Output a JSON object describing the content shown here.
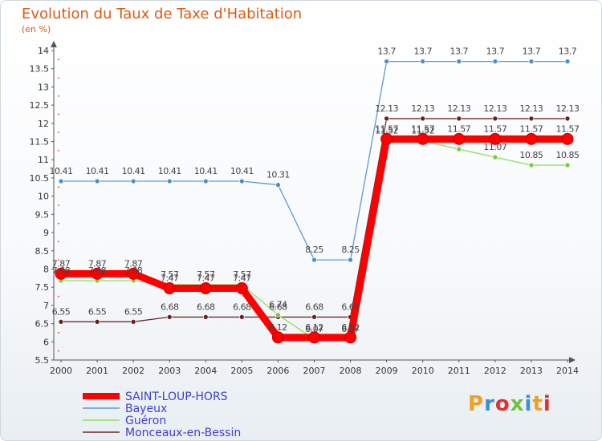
{
  "title": "Evolution du Taux de Taxe d'Habitation",
  "subtitle": "(en %)",
  "brand": "Proxiti",
  "chart_data": {
    "type": "line",
    "title": "Evolution du Taux de Taxe d'Habitation",
    "ylabel": "(en %)",
    "xlabel": "",
    "ylim": [
      5.5,
      14
    ],
    "yticks": [
      "5.5",
      "6",
      "6.5",
      "7",
      "7.5",
      "8",
      "8.5",
      "9",
      "9.5",
      "10",
      "10.5",
      "11",
      "11.5",
      "12",
      "12.5",
      "13",
      "13.5",
      "14"
    ],
    "x": [
      "2000",
      "2001",
      "2002",
      "2003",
      "2004",
      "2005",
      "2006",
      "2007",
      "2008",
      "2009",
      "2010",
      "2011",
      "2012",
      "2013",
      "2014"
    ],
    "series": [
      {
        "name": "SAINT-LOUP-HORS",
        "color": "#ff0000",
        "marker": "#ff0000",
        "values": [
          7.87,
          7.87,
          7.87,
          7.47,
          7.47,
          7.47,
          6.12,
          6.12,
          6.12,
          11.57,
          11.57,
          11.57,
          11.57,
          11.57,
          11.57
        ],
        "labels": [
          "",
          "",
          "",
          "",
          "",
          "",
          "6.12",
          "6.12",
          "6.12",
          "",
          "",
          "11.57",
          "",
          "",
          ""
        ]
      },
      {
        "name": "Bayeux",
        "color": "#5b9bd5",
        "marker": "#4a90c8",
        "values": [
          10.41,
          10.41,
          10.41,
          10.41,
          10.41,
          10.41,
          10.31,
          8.25,
          8.25,
          13.7,
          13.7,
          13.7,
          13.7,
          13.7,
          13.7
        ],
        "labels": [
          "10.41",
          "10.41",
          "10.41",
          "10.41",
          "10.41",
          "10.41",
          "10.31",
          "8.25",
          "8.25",
          "13.7",
          "13.7",
          "13.7",
          "13.7",
          "13.7",
          "13.7"
        ]
      },
      {
        "name": "Guéron",
        "color": "#90e060",
        "marker": "#78c848",
        "values": [
          7.68,
          7.68,
          7.68,
          7.57,
          7.57,
          7.57,
          6.74,
          6.07,
          6.07,
          11.52,
          11.52,
          11.29,
          11.07,
          10.85,
          10.85
        ],
        "labels": [
          "7.68",
          "7.68",
          "7.68",
          "7.57",
          "7.57",
          "7.57",
          "6.74",
          "6.07",
          "6.07",
          "11.52",
          "11.52",
          "",
          "11.07",
          "10.85",
          "10.85"
        ]
      },
      {
        "name": "Monceaux-en-Bessin",
        "color": "#6b2a2a",
        "marker": "#6b2020",
        "values": [
          6.55,
          6.55,
          6.55,
          6.68,
          6.68,
          6.68,
          6.68,
          6.68,
          6.68,
          12.13,
          12.13,
          12.13,
          12.13,
          12.13,
          12.13
        ],
        "labels": [
          "6.55",
          "6.55",
          "6.55",
          "6.68",
          "6.68",
          "6.68",
          "6.68",
          "6.68",
          "6.68",
          "12.13",
          "12.13",
          "12.13",
          "12.13",
          "12.13",
          "12.13"
        ]
      }
    ],
    "extra_labels": [
      "7.87",
      "7.87",
      "7.87",
      "7.47",
      "7.47",
      "7.47",
      "11.57",
      "11.57",
      "11.57",
      "11.57",
      "11.57"
    ],
    "grid": false,
    "legend": "bottom-left"
  }
}
